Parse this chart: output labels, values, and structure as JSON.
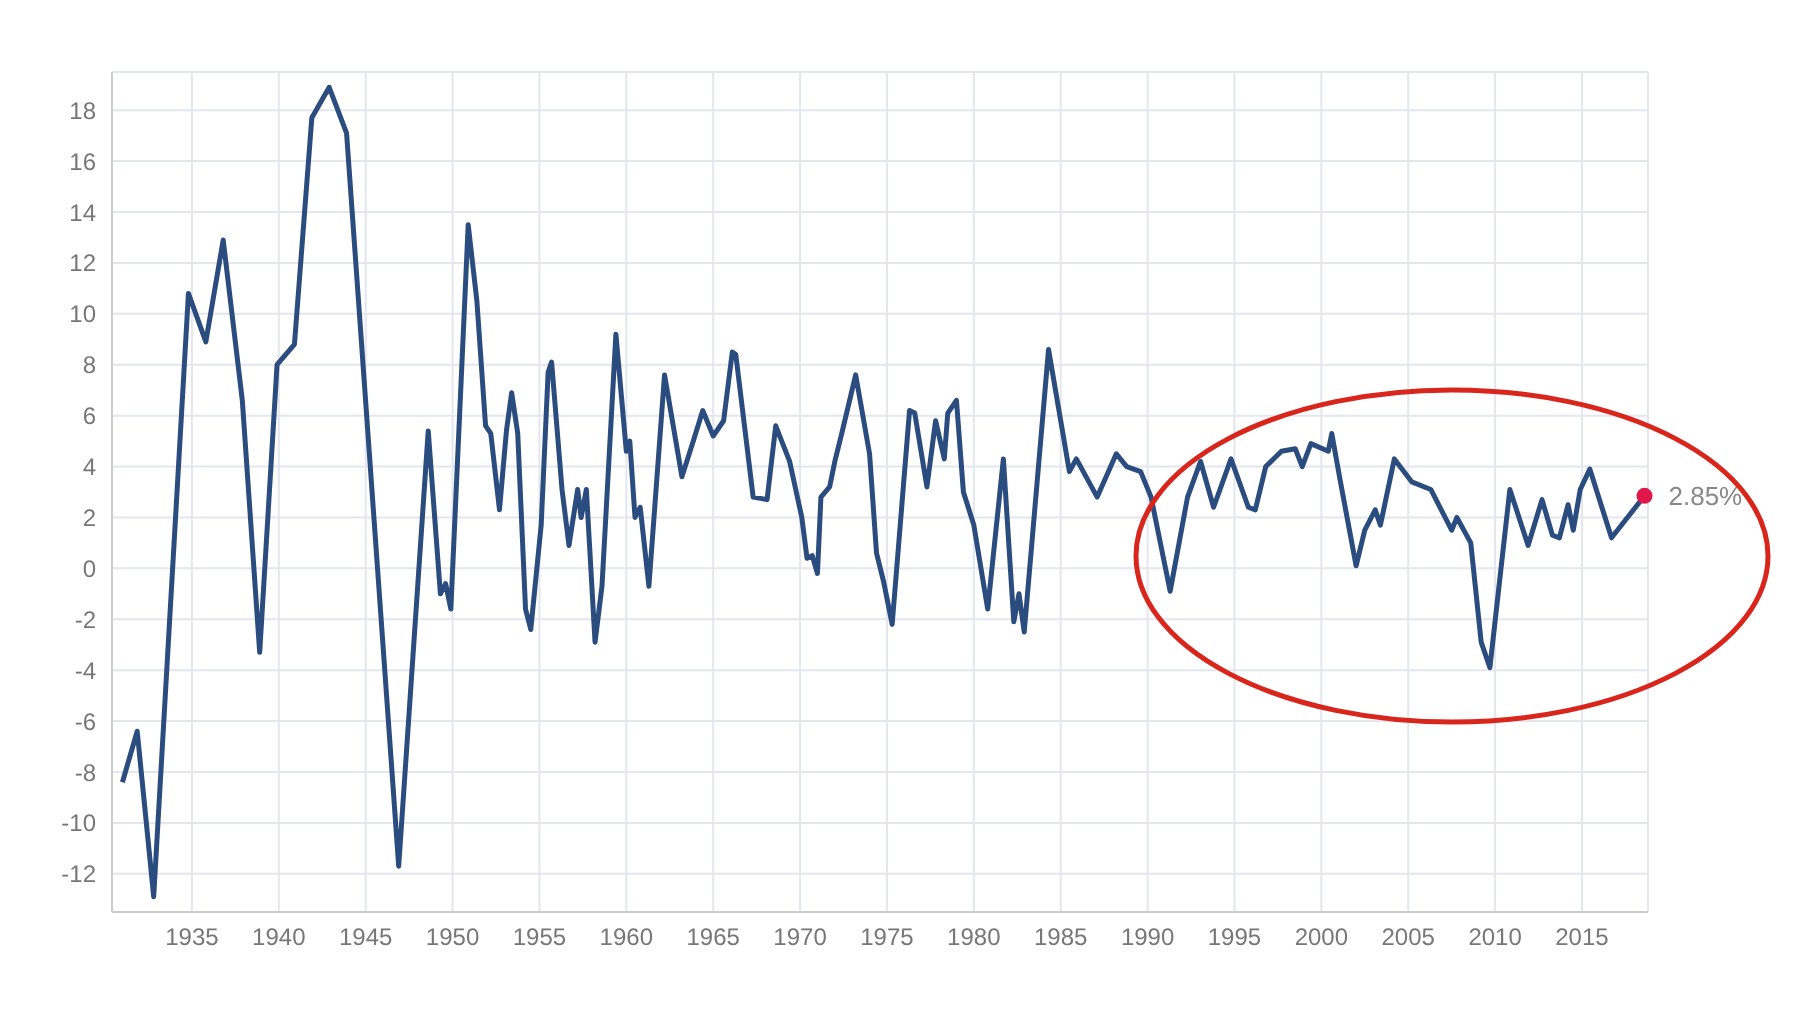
{
  "chart_data": {
    "type": "line",
    "x": [
      1931.0,
      1931.85,
      1932.8,
      1934.8,
      1935.8,
      1936.8,
      1937.9,
      1938.9,
      1939.9,
      1940.9,
      1941.9,
      1942.9,
      1943.9,
      1946.9,
      1948.6,
      1949.3,
      1949.6,
      1949.9,
      1950.9,
      1951.4,
      1951.9,
      1952.2,
      1952.7,
      1953.1,
      1953.4,
      1953.75,
      1954.2,
      1954.5,
      1955.1,
      1955.5,
      1955.7,
      1956.3,
      1956.7,
      1957.2,
      1957.4,
      1957.7,
      1958.2,
      1958.6,
      1959.4,
      1960.0,
      1960.2,
      1960.5,
      1960.8,
      1961.3,
      1962.2,
      1963.2,
      1963.9,
      1964.4,
      1965.0,
      1965.6,
      1966.1,
      1966.3,
      1967.3,
      1968.1,
      1968.6,
      1969.4,
      1970.1,
      1970.4,
      1970.7,
      1971.0,
      1971.2,
      1971.7,
      1972.0,
      1972.4,
      1973.2,
      1974.0,
      1974.4,
      1974.8,
      1975.3,
      1976.3,
      1976.6,
      1977.3,
      1977.8,
      1978.3,
      1978.5,
      1979.0,
      1979.4,
      1980.0,
      1980.8,
      1981.7,
      1982.3,
      1982.6,
      1982.9,
      1984.3,
      1985.5,
      1985.9,
      1987.1,
      1988.2,
      1988.8,
      1989.6,
      1990.2,
      1991.3,
      1992.3,
      1993.05,
      1993.8,
      1994.8,
      1995.8,
      1996.2,
      1996.8,
      1997.7,
      1998.5,
      1998.9,
      1999.4,
      2000.4,
      2000.6,
      2001.1,
      2002.0,
      2002.5,
      2003.1,
      2003.4,
      2004.2,
      2005.2,
      2006.3,
      2007.5,
      2007.8,
      2008.6,
      2009.2,
      2009.7,
      2010.85,
      2011.9,
      2012.7,
      2013.3,
      2013.7,
      2014.2,
      2014.5,
      2014.9,
      2015.45,
      2016.7,
      2018.6
    ],
    "series": [
      {
        "color": "#2b4c7e",
        "values": [
          -8.4,
          -6.4,
          -12.9,
          10.8,
          8.9,
          12.9,
          6.6,
          -3.3,
          8.0,
          8.8,
          17.7,
          18.9,
          17.1,
          -11.7,
          5.4,
          -1.0,
          -0.6,
          -1.6,
          13.5,
          10.5,
          5.6,
          5.3,
          2.3,
          5.4,
          6.9,
          5.3,
          -1.6,
          -2.4,
          1.7,
          7.7,
          8.1,
          3.1,
          0.9,
          3.1,
          2.0,
          3.1,
          -2.9,
          -0.7,
          9.2,
          4.6,
          5.0,
          2.0,
          2.4,
          -0.7,
          7.6,
          3.6,
          5.1,
          6.2,
          5.2,
          5.8,
          8.5,
          8.4,
          2.8,
          2.7,
          5.6,
          4.2,
          2.0,
          0.4,
          0.5,
          -0.2,
          2.8,
          3.2,
          4.2,
          5.3,
          7.6,
          4.5,
          0.6,
          -0.5,
          -2.2,
          6.2,
          6.1,
          3.2,
          5.8,
          4.3,
          6.1,
          6.6,
          3.0,
          1.7,
          -1.6,
          4.3,
          -2.1,
          -1.0,
          -2.5,
          8.6,
          3.8,
          4.3,
          2.8,
          4.5,
          4.0,
          3.8,
          2.8,
          -0.9,
          2.8,
          4.2,
          2.4,
          4.3,
          2.4,
          2.3,
          4.0,
          4.6,
          4.7,
          4.0,
          4.9,
          4.6,
          5.3,
          3.4,
          0.1,
          1.5,
          2.3,
          1.7,
          4.3,
          3.4,
          3.1,
          1.5,
          2.0,
          1.0,
          -2.9,
          -3.9,
          3.1,
          0.9,
          2.7,
          1.3,
          1.2,
          2.5,
          1.5,
          3.1,
          3.9,
          1.2,
          2.85
        ]
      }
    ],
    "xlim": [
      1930.4,
      2018.8
    ],
    "xticks": [
      1935,
      1940,
      1945,
      1950,
      1955,
      1960,
      1965,
      1970,
      1975,
      1980,
      1985,
      1990,
      1995,
      2000,
      2005,
      2010,
      2015
    ],
    "ylim": [
      -13.5,
      19.5
    ],
    "yticks": [
      -12,
      -10,
      -8,
      -6,
      -4,
      -2,
      0,
      2,
      4,
      6,
      8,
      10,
      12,
      14,
      16,
      18
    ],
    "grid": true,
    "marker": "none",
    "line_style": "solid",
    "annotations": [
      {
        "text": "2.85%",
        "x": 2018.6,
        "y": 2.85
      }
    ]
  }
}
